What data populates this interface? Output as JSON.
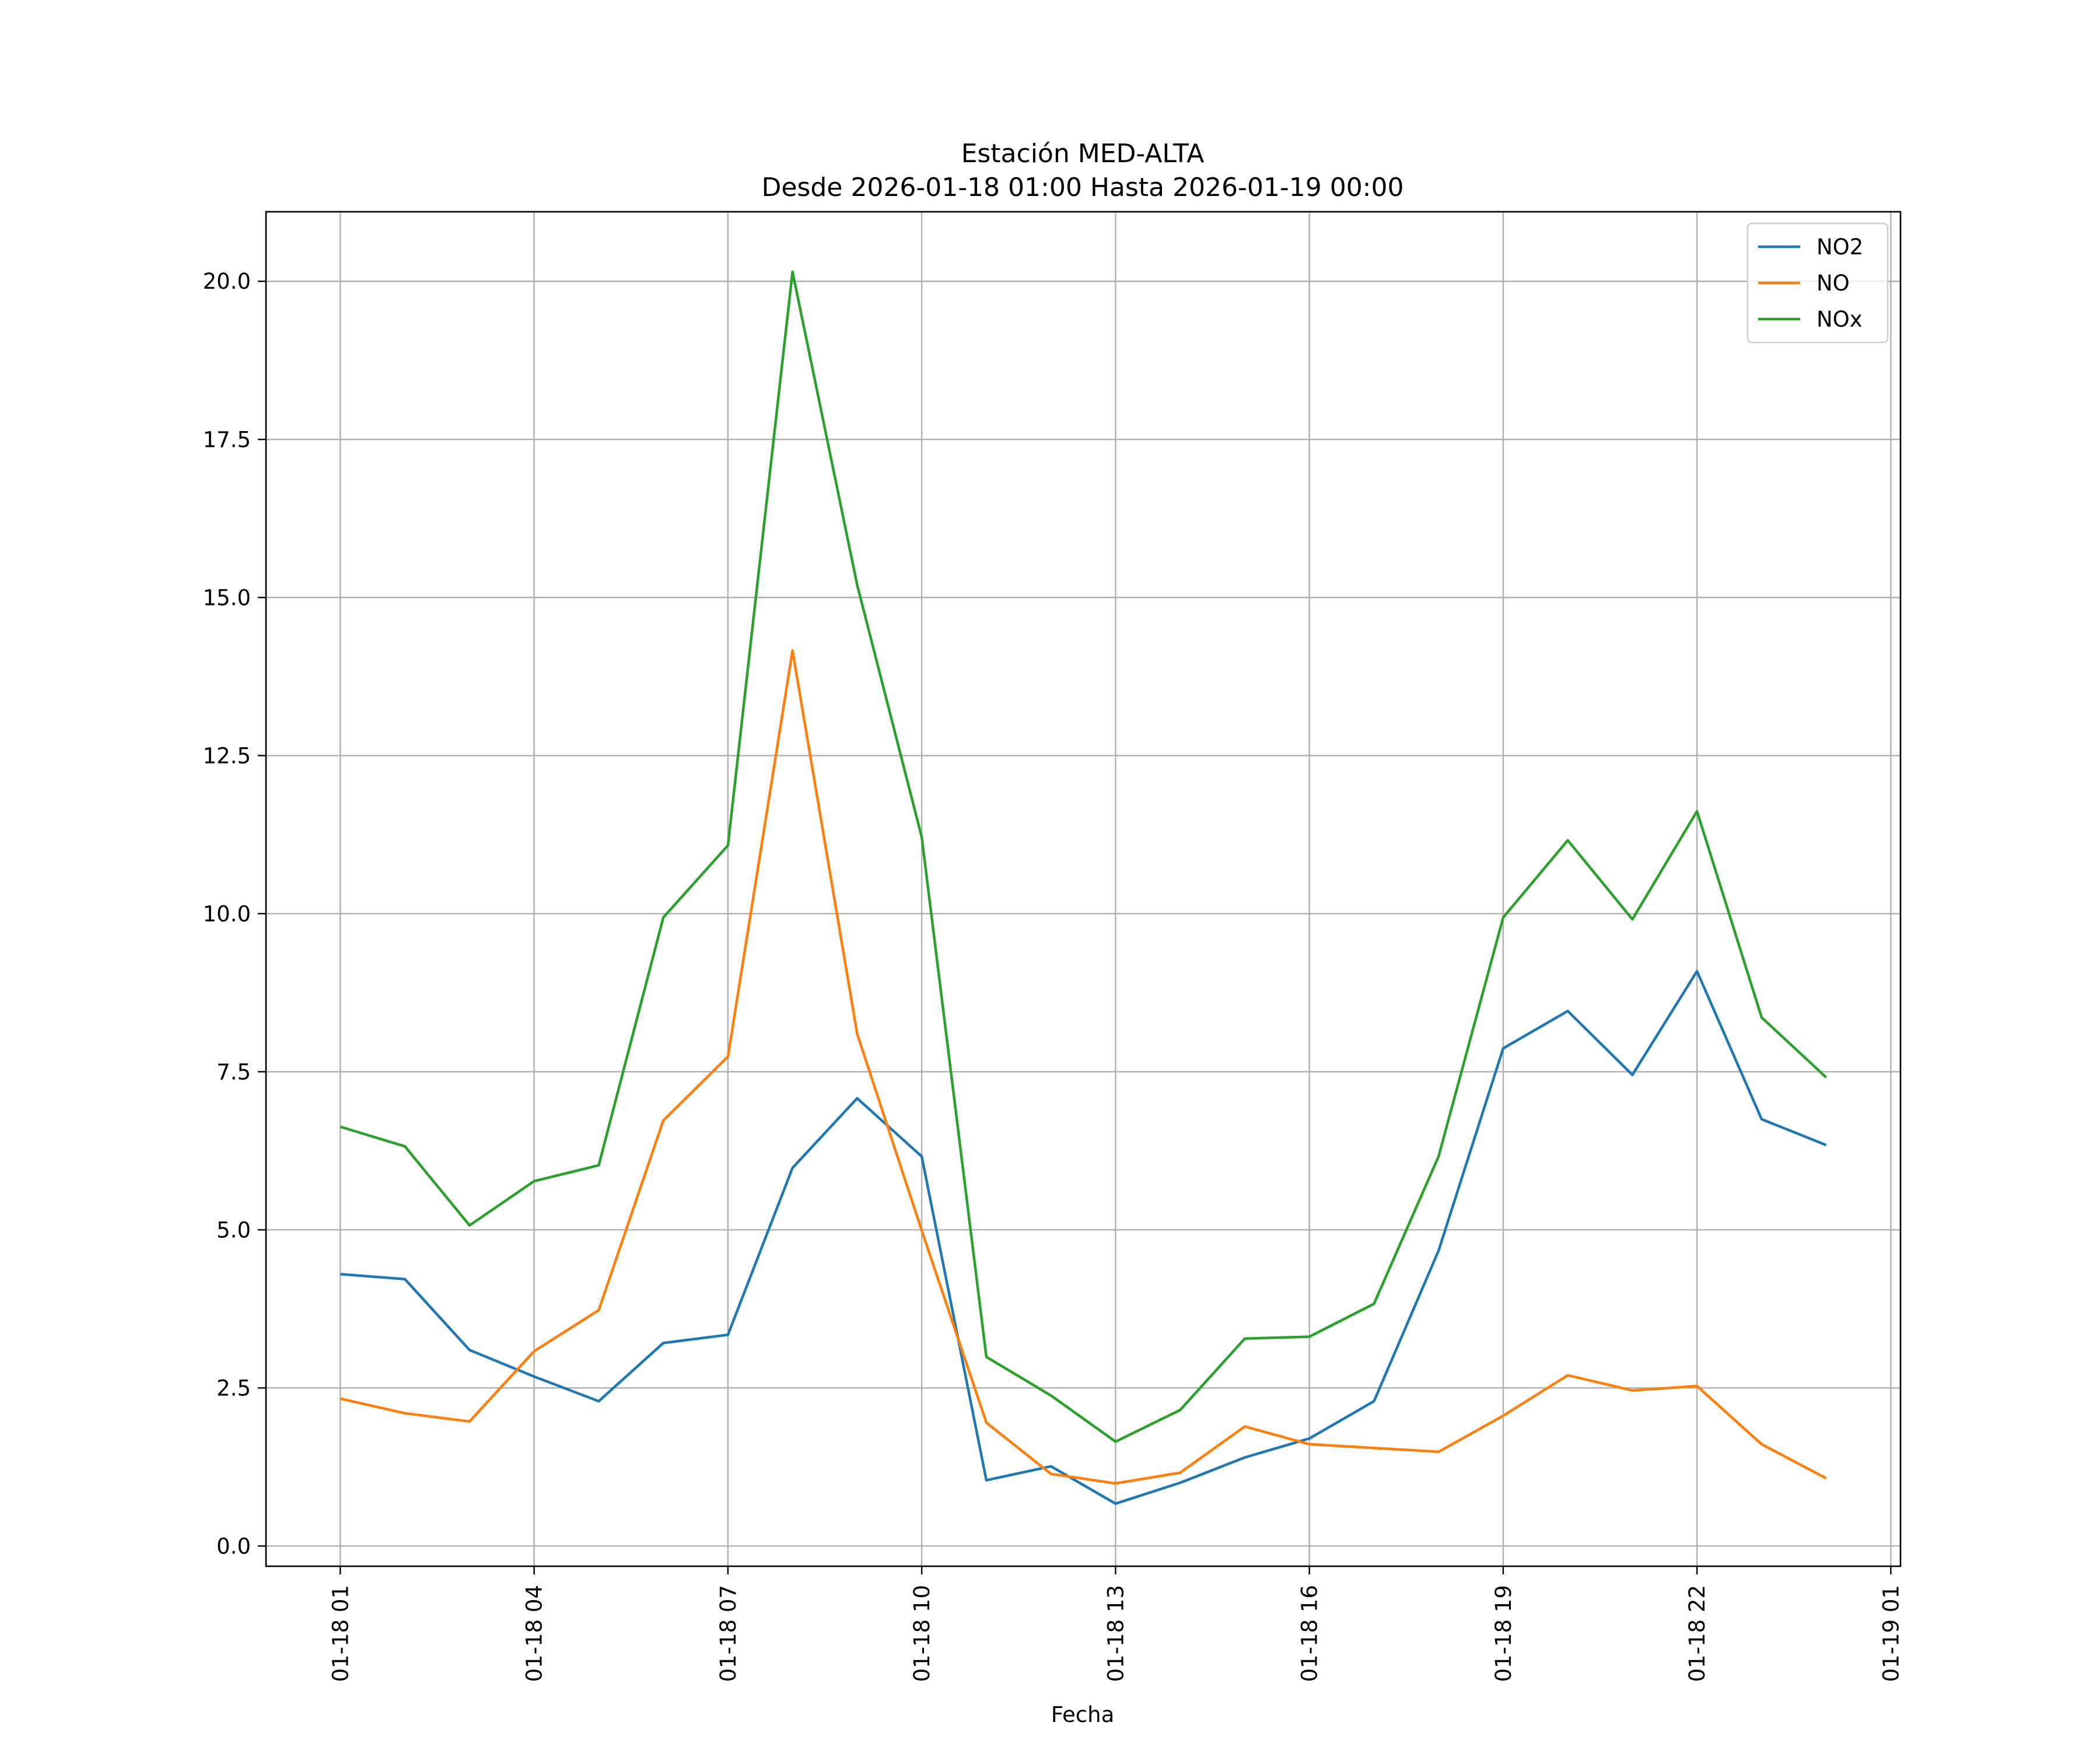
{
  "chart_data": {
    "type": "line",
    "title": "Estación MED-ALTA",
    "subtitle": "Desde 2026-01-18 01:00 Hasta 2026-01-19 00:00",
    "xlabel": "Fecha",
    "ylabel": "",
    "x": [
      "2026-01-18 01:00",
      "2026-01-18 02:00",
      "2026-01-18 03:00",
      "2026-01-18 04:00",
      "2026-01-18 05:00",
      "2026-01-18 06:00",
      "2026-01-18 07:00",
      "2026-01-18 08:00",
      "2026-01-18 09:00",
      "2026-01-18 10:00",
      "2026-01-18 11:00",
      "2026-01-18 12:00",
      "2026-01-18 13:00",
      "2026-01-18 14:00",
      "2026-01-18 15:00",
      "2026-01-18 16:00",
      "2026-01-18 17:00",
      "2026-01-18 18:00",
      "2026-01-18 19:00",
      "2026-01-18 20:00",
      "2026-01-18 21:00",
      "2026-01-18 22:00",
      "2026-01-18 23:00",
      "2026-01-19 00:00"
    ],
    "xlim": [
      "2026-01-17 23:51",
      "2026-01-19 01:09"
    ],
    "xticks": [
      "2026-01-18 01:00",
      "2026-01-18 04:00",
      "2026-01-18 07:00",
      "2026-01-18 10:00",
      "2026-01-18 13:00",
      "2026-01-18 16:00",
      "2026-01-18 19:00",
      "2026-01-18 22:00",
      "2026-01-19 01:00"
    ],
    "xtick_labels": [
      "01-18 01",
      "01-18 04",
      "01-18 07",
      "01-18 10",
      "01-18 13",
      "01-18 16",
      "01-18 19",
      "01-18 22",
      "01-19 01"
    ],
    "ylim": [
      -0.32,
      21.1
    ],
    "yticks": [
      0,
      2.5,
      5,
      7.5,
      10,
      12.5,
      15,
      17.5,
      20
    ],
    "ytick_labels": [
      "0.0",
      "2.5",
      "5.0",
      "7.5",
      "10.0",
      "12.5",
      "15.0",
      "17.5",
      "20.0"
    ],
    "grid": true,
    "legend": "top-right",
    "series": [
      {
        "name": "NO2",
        "color": "#1f77b4",
        "values": [
          4.3,
          4.22,
          3.1,
          2.68,
          2.29,
          3.21,
          3.34,
          5.98,
          7.08,
          6.16,
          1.04,
          1.26,
          0.67,
          1.0,
          1.4,
          1.7,
          2.29,
          4.67,
          7.87,
          8.46,
          7.45,
          9.09,
          6.75,
          6.34
        ]
      },
      {
        "name": "NO",
        "color": "#ff7f0e",
        "values": [
          2.33,
          2.1,
          1.97,
          3.08,
          3.73,
          6.73,
          7.74,
          14.16,
          8.1,
          4.99,
          1.95,
          1.14,
          0.99,
          1.16,
          1.89,
          1.61,
          1.55,
          1.49,
          2.06,
          2.7,
          2.46,
          2.53,
          1.61,
          1.07
        ]
      },
      {
        "name": "NOx",
        "color": "#2ca02c",
        "values": [
          6.63,
          6.32,
          5.07,
          5.77,
          6.02,
          9.94,
          11.08,
          20.15,
          15.2,
          11.21,
          2.99,
          2.38,
          1.65,
          2.15,
          3.28,
          3.31,
          3.83,
          6.16,
          9.94,
          11.16,
          9.91,
          11.62,
          8.36,
          7.41
        ]
      }
    ]
  }
}
